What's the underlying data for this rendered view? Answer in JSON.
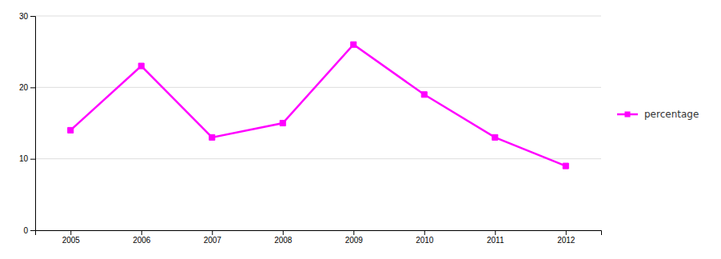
{
  "chart_data": {
    "type": "line",
    "x": [
      2005,
      2006,
      2007,
      2008,
      2009,
      2010,
      2011,
      2012
    ],
    "series": [
      {
        "name": "percentage",
        "color": "#FF00FF",
        "marker": "square",
        "values": [
          14,
          23,
          13,
          15,
          26,
          19,
          13,
          9
        ]
      }
    ],
    "xlim": [
      2004.5,
      2012.5
    ],
    "xticks": [
      2005,
      2006,
      2007,
      2008,
      2009,
      2010,
      2011,
      2012
    ],
    "ylim": [
      0,
      30
    ],
    "yticks": [
      0,
      10,
      20,
      30
    ],
    "grid": "y",
    "legend": "right"
  }
}
